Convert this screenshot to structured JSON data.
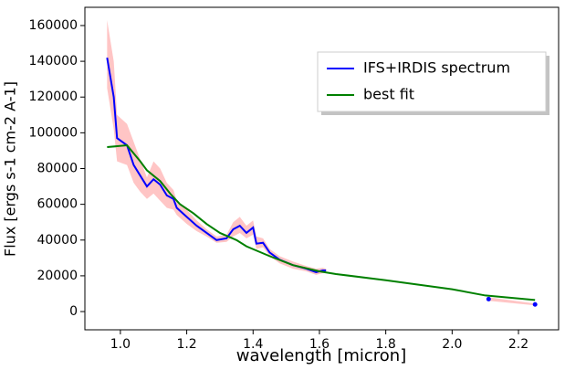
{
  "chart_data": {
    "type": "line",
    "xlabel": "wavelength [micron]",
    "ylabel": "Flux [ergs s-1 cm-2 A-1]",
    "xlim": [
      0.893,
      2.321
    ],
    "ylim": [
      -10200,
      170200
    ],
    "xticks": [
      {
        "value": 1.0,
        "label": "1.0"
      },
      {
        "value": 1.2,
        "label": "1.2"
      },
      {
        "value": 1.4,
        "label": "1.4"
      },
      {
        "value": 1.6,
        "label": "1.6"
      },
      {
        "value": 1.8,
        "label": "1.8"
      },
      {
        "value": 2.0,
        "label": "2.0"
      },
      {
        "value": 2.2,
        "label": "2.2"
      }
    ],
    "yticks": [
      0,
      20000,
      40000,
      60000,
      80000,
      100000,
      120000,
      140000,
      160000
    ],
    "legend": "upper right",
    "band": {
      "color": "#ffb6b6",
      "x": [
        0.96,
        0.98,
        0.99,
        1.02,
        1.04,
        1.06,
        1.08,
        1.1,
        1.12,
        1.14,
        1.16,
        1.17,
        1.2,
        1.23,
        1.26,
        1.29,
        1.32,
        1.34,
        1.36,
        1.38,
        1.4,
        1.41,
        1.43,
        1.45,
        1.48,
        1.52,
        1.56,
        1.59,
        1.61,
        1.62,
        null,
        2.11,
        2.25
      ],
      "upper": [
        163000,
        140000,
        110000,
        105000,
        95000,
        85000,
        75000,
        84000,
        80000,
        72000,
        68000,
        62000,
        57000,
        51000,
        46000,
        42000,
        43000,
        50000,
        53000,
        48000,
        51000,
        42000,
        41000,
        35000,
        31000,
        28000,
        25500,
        24000,
        24500,
        24000,
        null,
        8000,
        4500
      ],
      "lower": [
        125000,
        102000,
        84000,
        82000,
        72000,
        67000,
        63000,
        66000,
        62000,
        58000,
        57000,
        54000,
        49000,
        45000,
        42000,
        38500,
        39000,
        42000,
        44000,
        41000,
        43000,
        35000,
        36000,
        31000,
        27000,
        24000,
        22500,
        20500,
        21500,
        22000,
        null,
        6000,
        3500
      ]
    },
    "series": [
      {
        "name": "IFS+IRDIS spectrum",
        "color": "#0000ff",
        "x": [
          0.96,
          0.98,
          0.99,
          1.02,
          1.04,
          1.06,
          1.08,
          1.1,
          1.12,
          1.14,
          1.16,
          1.17,
          1.2,
          1.23,
          1.26,
          1.29,
          1.32,
          1.34,
          1.36,
          1.38,
          1.4,
          1.41,
          1.43,
          1.45,
          1.48,
          1.52,
          1.56,
          1.59,
          1.61,
          1.62,
          null,
          2.11,
          null,
          2.25
        ],
        "values": [
          142000,
          120000,
          97000,
          93000,
          82000,
          76000,
          70000,
          74000,
          71000,
          65000,
          63000,
          58000,
          53000,
          48000,
          44000,
          40000,
          41000,
          46000,
          48000,
          44000,
          47000,
          38000,
          38500,
          33000,
          29000,
          26000,
          24000,
          22000,
          23000,
          23000,
          null,
          7000,
          null,
          4000
        ]
      },
      {
        "name": "best fit",
        "color": "#008000",
        "x": [
          0.96,
          1.02,
          1.06,
          1.08,
          1.12,
          1.15,
          1.18,
          1.22,
          1.26,
          1.3,
          1.35,
          1.38,
          1.45,
          1.52,
          1.6,
          1.65,
          1.8,
          2.0,
          2.1,
          2.25
        ],
        "values": [
          92000,
          93000,
          84000,
          79000,
          73000,
          66000,
          60000,
          55000,
          49000,
          44000,
          40000,
          36500,
          31000,
          26000,
          22500,
          21000,
          17500,
          12500,
          9000,
          6500
        ]
      }
    ]
  }
}
